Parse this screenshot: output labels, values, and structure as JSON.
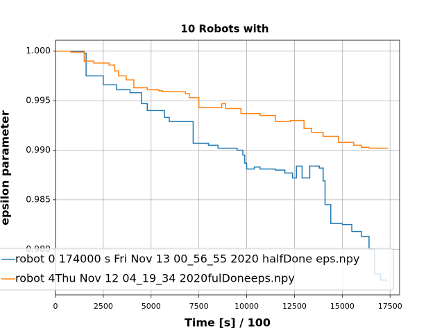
{
  "chart_data": {
    "type": "line",
    "drawstyle": "steps-post",
    "title": "10 Robots with",
    "xlabel": "Time [s] / 100",
    "ylabel": "epsilon parameter",
    "xlim": [
      0,
      18000
    ],
    "xticks": [
      0,
      2500,
      5000,
      7500,
      10000,
      12500,
      15000,
      17500
    ],
    "ylim": [
      0.9754,
      1.0011
    ],
    "yticks": [
      {
        "value": 1.0,
        "label": "1.000"
      },
      0.995,
      {
        "value": 0.99,
        "label": "0.990"
      },
      0.985,
      {
        "value": 0.98,
        "label": "0.980"
      }
    ],
    "grid": true,
    "legend": "lower left",
    "series": [
      {
        "name": "robot 0 174000 s Fri Nov 13 00_56_55 2020 halfDone eps.npy",
        "color": "#1f77b4",
        "x": [
          0,
          1500,
          1600,
          2500,
          3200,
          3900,
          4500,
          4800,
          5700,
          5950,
          7200,
          8000,
          8500,
          9500,
          9800,
          9900,
          10000,
          10400,
          10700,
          11500,
          12000,
          12400,
          12600,
          12900,
          13300,
          13800,
          14000,
          14100,
          14400,
          15000,
          15500,
          16000,
          16400,
          16700,
          17000,
          17300
        ],
        "values": [
          1.0,
          0.9998,
          0.9975,
          0.9966,
          0.9961,
          0.9958,
          0.9947,
          0.994,
          0.9933,
          0.9929,
          0.9907,
          0.9905,
          0.9902,
          0.99,
          0.9895,
          0.9887,
          0.9881,
          0.9883,
          0.9881,
          0.988,
          0.9877,
          0.9872,
          0.9884,
          0.9872,
          0.9884,
          0.9882,
          0.9869,
          0.9845,
          0.9826,
          0.9825,
          0.9818,
          0.9813,
          0.98,
          0.9775,
          0.9769,
          0.9767
        ]
      },
      {
        "name": "robot 4Thu Nov 12 04_19_34 2020fulDoneeps.npy",
        "color": "#ff7f0e",
        "x": [
          0,
          800,
          1500,
          2000,
          2800,
          3100,
          3300,
          3700,
          4100,
          4800,
          5400,
          5600,
          6800,
          7000,
          7500,
          8700,
          8900,
          9700,
          10700,
          11500,
          12300,
          13000,
          13400,
          14000,
          14800,
          15600,
          16000,
          16400,
          17400
        ],
        "values": [
          1.0,
          0.9999,
          0.999,
          0.9988,
          0.9986,
          0.998,
          0.9975,
          0.9971,
          0.9963,
          0.9961,
          0.996,
          0.9959,
          0.9957,
          0.9953,
          0.9943,
          0.9947,
          0.9942,
          0.9937,
          0.9935,
          0.9929,
          0.993,
          0.9922,
          0.9918,
          0.9914,
          0.9908,
          0.9905,
          0.9903,
          0.9902,
          0.9902
        ]
      }
    ]
  }
}
